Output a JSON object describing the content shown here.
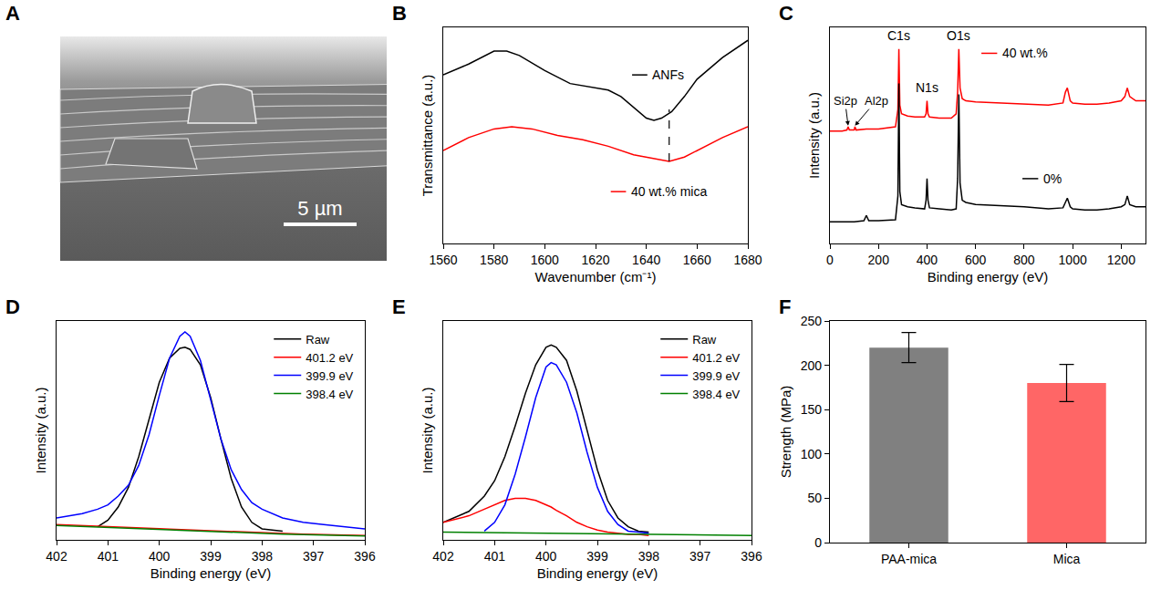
{
  "panel_a": {
    "panel": "A",
    "type": "image",
    "scale_bar": "5 µm"
  },
  "chart_data": [
    {
      "panel": "B",
      "type": "line",
      "x_label": "Wavenumber (cm⁻¹)",
      "y_label": "Transmittance (a.u.)",
      "xlim": [
        1560,
        1680
      ],
      "xticks": [
        1560,
        1580,
        1600,
        1620,
        1640,
        1660,
        1680
      ],
      "ylim": [
        0,
        100
      ],
      "tick_labels": "x",
      "legend": "inline",
      "series": [
        {
          "name": "ANFs",
          "color": "#000000",
          "x": [
            1560,
            1570,
            1580,
            1585,
            1590,
            1600,
            1610,
            1620,
            1625,
            1630,
            1635,
            1640,
            1643,
            1646,
            1650,
            1655,
            1660,
            1670,
            1680
          ],
          "values": [
            78,
            83,
            89,
            89,
            87,
            80,
            74,
            72,
            71,
            68,
            63,
            58,
            57,
            58,
            61,
            68,
            76,
            86,
            94
          ]
        },
        {
          "name": "40 wt.% mica",
          "color": "#ff0000",
          "x": [
            1560,
            1570,
            1580,
            1587,
            1595,
            1605,
            1615,
            1625,
            1635,
            1645,
            1649,
            1655,
            1660,
            1670,
            1680
          ],
          "values": [
            43,
            49,
            53,
            54,
            53,
            50,
            48,
            45,
            41,
            39,
            38,
            40,
            43,
            49,
            54
          ]
        }
      ],
      "reference_lines": [
        {
          "x": 1649,
          "y": [
            38,
            62
          ],
          "line_style": "dash",
          "color": "#000000"
        }
      ]
    },
    {
      "panel": "C",
      "type": "line",
      "x_label": "Binding energy (eV)",
      "y_label": "Intensity (a.u.)",
      "xlim": [
        0,
        1300
      ],
      "xticks": [
        0,
        200,
        400,
        600,
        800,
        1000,
        1200
      ],
      "ylim": [
        0,
        100
      ],
      "tick_labels": "x",
      "legend": "inline",
      "series": [
        {
          "name": "40 wt.%",
          "color": "#ff0000",
          "x": [
            0,
            50,
            70,
            75,
            80,
            100,
            103,
            108,
            150,
            200,
            270,
            280,
            284,
            288,
            295,
            320,
            350,
            390,
            396,
            400,
            404,
            410,
            450,
            500,
            520,
            526,
            531,
            536,
            545,
            560,
            600,
            700,
            800,
            900,
            960,
            970,
            978,
            990,
            1000,
            1050,
            1100,
            1150,
            1200,
            1215,
            1225,
            1235,
            1260,
            1300
          ],
          "values": [
            52,
            52,
            52.5,
            54,
            52.5,
            52.5,
            54,
            52.5,
            53,
            53,
            54,
            62,
            90,
            64,
            60,
            59,
            58.5,
            58.5,
            60,
            66,
            60,
            58.5,
            58,
            58,
            60,
            70,
            90,
            72,
            67,
            66,
            65.5,
            65,
            64.5,
            64,
            65,
            70,
            72,
            66,
            65,
            64.5,
            64.5,
            65,
            66,
            68,
            72,
            68,
            66,
            66
          ]
        },
        {
          "name": "0%",
          "color": "#000000",
          "x": [
            0,
            50,
            100,
            140,
            150,
            160,
            200,
            270,
            280,
            284,
            288,
            295,
            320,
            350,
            390,
            396,
            400,
            404,
            410,
            450,
            500,
            520,
            526,
            531,
            536,
            545,
            560,
            600,
            700,
            800,
            900,
            960,
            970,
            978,
            990,
            1000,
            1050,
            1100,
            1150,
            1200,
            1215,
            1225,
            1235,
            1260,
            1300
          ],
          "values": [
            10,
            10,
            10,
            10.5,
            13,
            10.5,
            10.5,
            11,
            22,
            74,
            24,
            18,
            17,
            16.5,
            16,
            20,
            30,
            20,
            16.5,
            16,
            15.5,
            16,
            30,
            69,
            28,
            20,
            19,
            18,
            17.5,
            17,
            16,
            16.5,
            19,
            21,
            17,
            16,
            15.5,
            15.5,
            16,
            17,
            18,
            22,
            18,
            17,
            17
          ]
        }
      ],
      "annotations": [
        {
          "text": "C1s",
          "x": 284,
          "y": 92
        },
        {
          "text": "O1s",
          "x": 531,
          "y": 92
        },
        {
          "text": "N1s",
          "x": 400,
          "y": 68
        },
        {
          "text": "Si2p",
          "x": 75,
          "y": 54.5,
          "ax": 62,
          "ay": 66
        },
        {
          "text": "Al2p",
          "x": 103,
          "y": 54.5,
          "ax": 190,
          "ay": 66
        }
      ]
    },
    {
      "panel": "D",
      "type": "line",
      "x_label": "Binding energy (eV)",
      "y_label": "Intensity (a.u.)",
      "xlim": [
        402,
        396
      ],
      "xticks": [
        402,
        401,
        400,
        399,
        398,
        397,
        396
      ],
      "ylim": [
        0,
        100
      ],
      "tick_labels": "x",
      "legend": "top right",
      "x": [
        402,
        401.5,
        401.2,
        401,
        400.8,
        400.6,
        400.4,
        400.2,
        400,
        399.8,
        399.6,
        399.5,
        399.4,
        399.2,
        399,
        398.8,
        398.6,
        398.4,
        398.2,
        398,
        397.6,
        397.2,
        396.8,
        396.4,
        396
      ],
      "series": [
        {
          "name": "Raw",
          "color": "#000000",
          "values": [
            null,
            null,
            6,
            9,
            15,
            24,
            38,
            55,
            72,
            83,
            87.5,
            88,
            87,
            80,
            65,
            46,
            28,
            15,
            8,
            5,
            4,
            null,
            null,
            null,
            null
          ]
        },
        {
          "name": "401.2 eV",
          "color": "#ff0000",
          "values": [
            7,
            6.6,
            6.3,
            6.1,
            5.9,
            5.7,
            5.5,
            5.3,
            5.1,
            4.9,
            4.7,
            4.6,
            4.5,
            4.3,
            4.1,
            3.9,
            3.7,
            3.5,
            3.3,
            3.1,
            2.8,
            2.6,
            2.4,
            2.2,
            2
          ]
        },
        {
          "name": "399.9 eV",
          "color": "#0000ff",
          "values": [
            10,
            12,
            14,
            16,
            20,
            25,
            34,
            48,
            66,
            83,
            93,
            95,
            93,
            82,
            64,
            46,
            32,
            23,
            17,
            14,
            10,
            8,
            7,
            6,
            5
          ]
        },
        {
          "name": "398.4 eV",
          "color": "#008000",
          "values": [
            6.6,
            6.2,
            6,
            5.8,
            5.6,
            5.4,
            5.2,
            5,
            4.8,
            4.6,
            4.4,
            4.3,
            4.2,
            4,
            3.8,
            3.6,
            3.4,
            3.2,
            3,
            2.8,
            2.6,
            2.4,
            2.2,
            2,
            1.8
          ]
        }
      ]
    },
    {
      "panel": "E",
      "type": "line",
      "x_label": "Binding energy (eV)",
      "y_label": "Intensity (a.u.)",
      "xlim": [
        402,
        396
      ],
      "xticks": [
        402,
        401,
        400,
        399,
        398,
        397,
        396
      ],
      "ylim": [
        0,
        100
      ],
      "tick_labels": "x",
      "legend": "top right",
      "x": [
        402,
        401.5,
        401.2,
        401,
        400.8,
        400.6,
        400.4,
        400.2,
        400,
        399.9,
        399.8,
        399.6,
        399.4,
        399.2,
        399,
        398.8,
        398.6,
        398.4,
        398.2,
        398,
        397.6,
        397.2,
        396.8,
        396.4,
        396
      ],
      "series": [
        {
          "name": "Raw",
          "color": "#000000",
          "values": [
            8,
            13,
            20,
            27,
            38,
            52,
            67,
            80,
            88,
            89,
            88,
            82,
            68,
            50,
            32,
            18,
            10,
            6,
            4,
            3.5,
            null,
            null,
            null,
            null,
            null
          ]
        },
        {
          "name": "401.2 eV",
          "color": "#ff0000",
          "values": [
            8,
            11,
            14,
            16,
            18,
            19,
            19,
            18,
            16,
            15,
            13.5,
            11,
            8,
            6,
            4.5,
            3.5,
            3,
            2.5,
            2.5,
            2,
            null,
            null,
            null,
            null,
            null
          ]
        },
        {
          "name": "399.9 eV",
          "color": "#0000ff",
          "values": [
            null,
            null,
            4,
            8,
            16,
            30,
            47,
            65,
            79,
            81,
            80,
            72,
            58,
            40,
            24,
            13,
            7,
            4,
            3.5,
            3,
            null,
            null,
            null,
            null,
            null
          ]
        },
        {
          "name": "398.4 eV",
          "color": "#008000",
          "values": [
            3.5,
            3.4,
            3.3,
            3.3,
            3.2,
            3.2,
            3.1,
            3.1,
            3,
            3,
            3,
            2.9,
            2.9,
            2.8,
            2.8,
            2.7,
            2.7,
            2.6,
            2.6,
            2.5,
            2.4,
            2.3,
            2.2,
            2.1,
            2
          ]
        }
      ]
    },
    {
      "panel": "F",
      "type": "bar",
      "y_label": "Strength (MPa)",
      "categories": [
        "PAA-mica",
        "Mica"
      ],
      "values": [
        220,
        180
      ],
      "errors": [
        17,
        21
      ],
      "colors": [
        "#808080",
        "#ff6666"
      ],
      "ylim": [
        0,
        250
      ],
      "yticks": [
        0,
        50,
        100,
        150,
        200,
        250
      ]
    }
  ]
}
